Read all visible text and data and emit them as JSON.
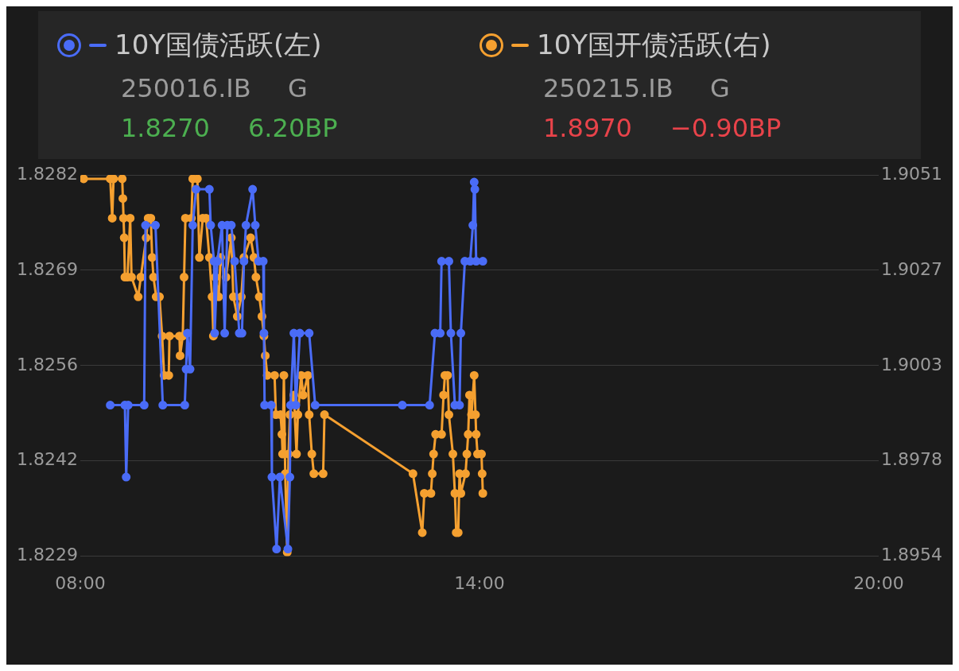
{
  "chart_data": {
    "type": "line",
    "legend": "top",
    "grid": "y",
    "marker": "circle",
    "line_style": "solid",
    "xlim": [
      8,
      20
    ],
    "xticks": [
      {
        "value": 8,
        "label": "08:00"
      },
      {
        "value": 14,
        "label": "14:00"
      },
      {
        "value": 20,
        "label": "20:00"
      }
    ],
    "ylim": [
      1.8229,
      1.8282
    ],
    "yticks": [
      1.8229,
      {
        "value": 1.824225,
        "label": "1.8242"
      },
      {
        "value": 1.82555,
        "label": "1.8256"
      },
      {
        "value": 1.826875,
        "label": "1.8269"
      },
      1.8282
    ],
    "y2lim": [
      1.8954,
      1.9051
    ],
    "y2ticks": [
      1.8954,
      {
        "value": 1.897825,
        "label": "1.8978"
      },
      {
        "value": 1.90025,
        "label": "1.9003"
      },
      {
        "value": 1.902675,
        "label": "1.9027"
      },
      1.9051
    ],
    "annotations": [
      "250016.IB",
      "G",
      "1.8270",
      "6.20BP",
      "250215.IB",
      "G",
      "1.8970",
      "−0.90BP"
    ],
    "series": [
      {
        "name": "10Y国债活跃(左)",
        "color": "#4a6cf7",
        "axis": "y",
        "x": [
          8.45,
          8.67,
          8.69,
          8.72,
          8.96,
          8.98,
          9.13,
          9.24,
          9.57,
          9.59,
          9.61,
          9.65,
          9.69,
          9.74,
          9.94,
          9.96,
          10.01,
          10.02,
          10.06,
          10.13,
          10.17,
          10.21,
          10.27,
          10.32,
          10.39,
          10.43,
          10.46,
          10.49,
          10.59,
          10.63,
          10.68,
          10.75,
          10.76,
          10.77,
          10.87,
          10.88,
          10.95,
          11.0,
          11.12,
          11.15,
          11.16,
          11.21,
          11.24,
          11.3,
          11.44,
          11.53,
          12.84,
          13.25,
          13.33,
          13.41,
          13.43,
          13.54,
          13.57,
          13.63,
          13.7,
          13.72,
          13.78,
          13.86,
          13.9,
          13.92,
          13.93,
          13.95,
          14.05
        ],
        "values": [
          1.825,
          1.825,
          1.824,
          1.825,
          1.825,
          1.8275,
          1.8275,
          1.825,
          1.825,
          1.8255,
          1.826,
          1.8255,
          1.8275,
          1.828,
          1.828,
          1.8275,
          1.827,
          1.826,
          1.827,
          1.8275,
          1.826,
          1.8275,
          1.8275,
          1.827,
          1.826,
          1.826,
          1.827,
          1.8275,
          1.828,
          1.8275,
          1.827,
          1.827,
          1.826,
          1.825,
          1.825,
          1.824,
          1.823,
          1.824,
          1.823,
          1.824,
          1.825,
          1.826,
          1.825,
          1.826,
          1.826,
          1.825,
          1.825,
          1.825,
          1.826,
          1.826,
          1.827,
          1.827,
          1.826,
          1.825,
          1.825,
          1.826,
          1.827,
          1.827,
          1.8275,
          1.8281,
          1.828,
          1.827,
          1.827
        ]
      },
      {
        "name": "10Y国开债活跃(右)",
        "color": "#f5a030",
        "axis": "y2",
        "x": [
          8.05,
          8.45,
          8.48,
          8.5,
          8.63,
          8.64,
          8.65,
          8.66,
          8.67,
          8.71,
          8.75,
          8.77,
          8.87,
          8.91,
          8.99,
          9.02,
          9.06,
          9.08,
          9.1,
          9.14,
          9.19,
          9.23,
          9.26,
          9.33,
          9.34,
          9.49,
          9.5,
          9.54,
          9.56,
          9.58,
          9.67,
          9.69,
          9.76,
          9.79,
          9.84,
          9.89,
          9.94,
          9.98,
          10.0,
          10.03,
          10.08,
          10.11,
          10.19,
          10.27,
          10.3,
          10.36,
          10.42,
          10.46,
          10.56,
          10.61,
          10.64,
          10.69,
          10.73,
          10.76,
          10.78,
          10.81,
          10.92,
          10.94,
          11.01,
          11.03,
          11.04,
          11.06,
          11.08,
          11.11,
          11.13,
          11.15,
          11.21,
          11.25,
          11.27,
          11.32,
          11.35,
          11.42,
          11.44,
          11.48,
          11.51,
          11.65,
          11.67,
          13.0,
          13.14,
          13.17,
          13.27,
          13.29,
          13.31,
          13.34,
          13.43,
          13.46,
          13.48,
          13.52,
          13.54,
          13.6,
          13.63,
          13.65,
          13.68,
          13.7,
          13.72,
          13.79,
          13.81,
          13.83,
          13.85,
          13.88,
          13.92,
          13.94,
          13.95,
          13.97,
          14.03,
          14.04,
          14.05
        ],
        "values": [
          1.905,
          1.905,
          1.904,
          1.905,
          1.905,
          1.9045,
          1.904,
          1.9035,
          1.9025,
          1.9025,
          1.904,
          1.9025,
          1.902,
          1.9025,
          1.9035,
          1.904,
          1.904,
          1.903,
          1.9025,
          1.902,
          1.902,
          1.901,
          1.9,
          1.9,
          1.901,
          1.901,
          1.9005,
          1.901,
          1.9025,
          1.904,
          1.904,
          1.905,
          1.905,
          1.903,
          1.904,
          1.904,
          1.903,
          1.902,
          1.901,
          1.9025,
          1.902,
          1.903,
          1.9025,
          1.9035,
          1.902,
          1.9015,
          1.902,
          1.903,
          1.9035,
          1.903,
          1.9025,
          1.902,
          1.9015,
          1.901,
          1.9005,
          1.9,
          1.9,
          1.899,
          1.899,
          1.8985,
          1.898,
          1.9,
          1.8975,
          1.8955,
          1.898,
          1.899,
          1.8995,
          1.898,
          1.899,
          1.9,
          1.8995,
          1.9,
          1.899,
          1.898,
          1.8975,
          1.8975,
          1.899,
          1.8975,
          1.896,
          1.897,
          1.897,
          1.8975,
          1.898,
          1.8985,
          1.8985,
          1.8995,
          1.9,
          1.9,
          1.899,
          1.898,
          1.897,
          1.896,
          1.896,
          1.8975,
          1.897,
          1.8975,
          1.898,
          1.8985,
          1.8995,
          1.899,
          1.9,
          1.899,
          1.8985,
          1.898,
          1.898,
          1.8975,
          1.897
        ]
      }
    ]
  }
}
